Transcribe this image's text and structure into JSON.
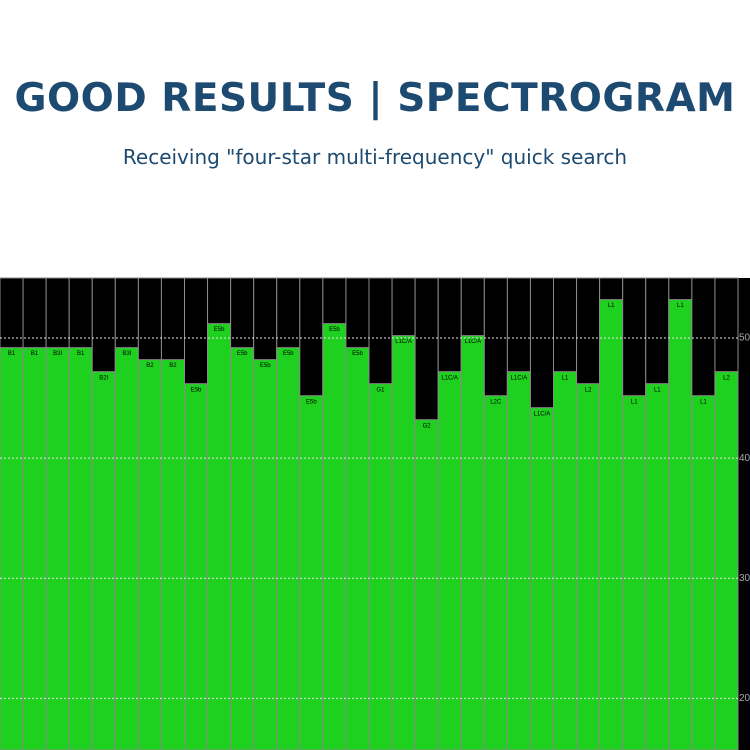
{
  "chart_data": {
    "type": "bar",
    "title": "GOOD RESULTS | SPECTROGRAM",
    "subtitle": "Receiving \"four-star multi-frequency\" quick search",
    "categories": [
      "B1",
      "B1",
      "B3I",
      "B1",
      "B2I",
      "B3I",
      "B2",
      "B2",
      "E5b",
      "E5b",
      "E5b",
      "E5b",
      "E5b",
      "E5b",
      "E5b",
      "E5b",
      "G1",
      "L1C/A",
      "G2",
      "L1C/A",
      "L1C/A",
      "L2C",
      "L1C/A",
      "L1C/A",
      "L1",
      "L2",
      "L1",
      "L1",
      "L1",
      "L1",
      "L1",
      "L2"
    ],
    "values": [
      49.2,
      49.2,
      49.2,
      49.2,
      47.2,
      49.2,
      48.2,
      48.2,
      46.2,
      51.2,
      49.2,
      48.2,
      49.2,
      45.2,
      51.2,
      49.2,
      46.2,
      50.2,
      43.2,
      47.2,
      50.2,
      45.2,
      47.2,
      44.2,
      47.2,
      46.2,
      53.2,
      45.2,
      46.2,
      53.2,
      45.2,
      47.2
    ],
    "color": "#1fd11f",
    "ylim": [
      15.7,
      55
    ],
    "yticks": [
      20,
      30,
      40,
      50
    ],
    "grid": true
  }
}
